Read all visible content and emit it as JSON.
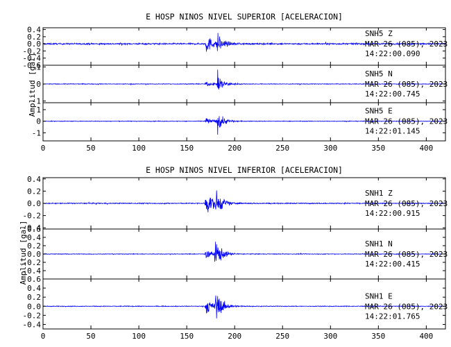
{
  "chart_data": [
    {
      "type": "line",
      "title": "E HOSP NINOS NIVEL SUPERIOR [ACELERACION]",
      "ylabel": "Amplitud [gal]",
      "xlim": [
        0,
        420
      ],
      "x_ticks": [
        0,
        50,
        100,
        150,
        200,
        250,
        300,
        350,
        400
      ],
      "series_color": "#0000ff",
      "channels": [
        {
          "name": "SNH5  Z",
          "date": "MAR 26 (085), 2023",
          "time": "14:22:00.090",
          "ylim": [
            -0.6,
            0.45
          ],
          "y_ticks": [
            -0.6,
            -0.4,
            -0.2,
            0.0,
            0.2,
            0.4
          ],
          "y_tick_labels": [
            "-0.6",
            "-0.4",
            "-0.2",
            "0.0",
            "0.2",
            "0.4"
          ],
          "noise": 0.03,
          "events": [
            {
              "t": 170,
              "amp": 0.45
            },
            {
              "t": 182,
              "amp": 0.38
            }
          ]
        },
        {
          "name": "SNH5  N",
          "date": "MAR 26 (085), 2023",
          "time": "14:22:00.745",
          "ylim": [
            -1.1,
            1.1
          ],
          "y_ticks": [
            -1,
            0,
            1
          ],
          "y_tick_labels": [
            "-1",
            "0",
            "1"
          ],
          "noise": 0.03,
          "events": [
            {
              "t": 170,
              "amp": 0.25
            },
            {
              "t": 182,
              "amp": 0.9
            }
          ]
        },
        {
          "name": "SNH5  E",
          "date": "MAR 26 (085), 2023",
          "time": "14:22:01.145",
          "ylim": [
            -1.7,
            1.6
          ],
          "y_ticks": [
            -1,
            0,
            1
          ],
          "y_tick_labels": [
            "-1",
            "0",
            "1"
          ],
          "noise": 0.04,
          "events": [
            {
              "t": 170,
              "amp": 0.55
            },
            {
              "t": 182,
              "amp": 1.4
            }
          ]
        }
      ]
    },
    {
      "type": "line",
      "title": "E HOSP NINOS NIVEL INFERIOR [ACELERACION]",
      "ylabel": "Amplitud [gal]",
      "xlim": [
        0,
        420
      ],
      "x_ticks": [
        0,
        50,
        100,
        150,
        200,
        250,
        300,
        350,
        400
      ],
      "series_color": "#0000ff",
      "channels": [
        {
          "name": "SNH1  Z",
          "date": "MAR 26 (085), 2023",
          "time": "14:22:00.915",
          "ylim": [
            -0.42,
            0.42
          ],
          "y_ticks": [
            -0.4,
            -0.2,
            0.0,
            0.2,
            0.4
          ],
          "y_tick_labels": [
            "-0.4",
            "-0.2",
            "0.0",
            "0.2",
            "0.4"
          ],
          "noise": 0.012,
          "events": [
            {
              "t": 170,
              "amp": 0.38
            },
            {
              "t": 180,
              "amp": 0.3
            }
          ]
        },
        {
          "name": "SNH1  N",
          "date": "MAR 26 (085), 2023",
          "time": "14:22:00.415",
          "ylim": [
            -0.6,
            0.6
          ],
          "y_ticks": [
            -0.4,
            -0.2,
            0.0,
            0.2,
            0.4,
            0.6
          ],
          "y_tick_labels": [
            "-0.4",
            "-0.2",
            "0.0",
            "0.2",
            "0.4",
            "0.6"
          ],
          "noise": 0.012,
          "events": [
            {
              "t": 170,
              "amp": 0.2
            },
            {
              "t": 180,
              "amp": 0.55
            }
          ]
        },
        {
          "name": "SNH1  E",
          "date": "MAR 26 (085), 2023",
          "time": "14:22:01.765",
          "ylim": [
            -0.5,
            0.6
          ],
          "y_ticks": [
            -0.4,
            -0.2,
            0.0,
            0.2,
            0.4,
            0.6
          ],
          "y_tick_labels": [
            "-0.4",
            "-0.2",
            "0.0",
            "0.2",
            "0.4",
            "0.6"
          ],
          "noise": 0.012,
          "events": [
            {
              "t": 170,
              "amp": 0.3
            },
            {
              "t": 180,
              "amp": 0.55
            }
          ]
        }
      ]
    }
  ]
}
